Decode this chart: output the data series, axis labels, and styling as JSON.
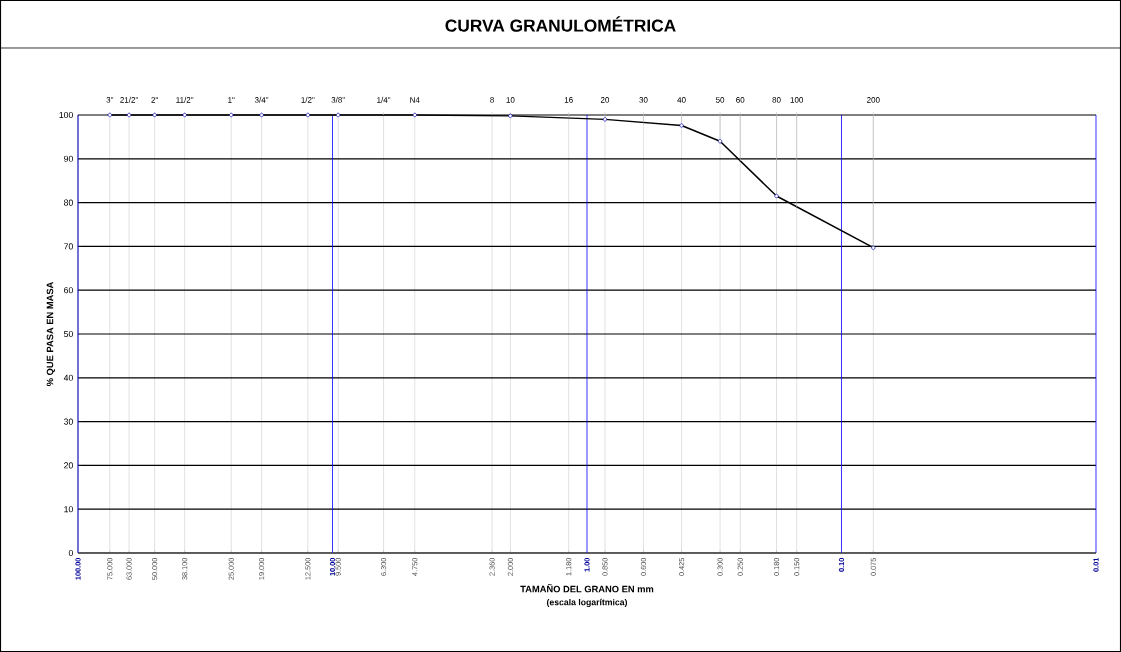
{
  "chart_data": {
    "type": "line",
    "title": "CURVA GRANULOMÉTRICA",
    "xlabel": "TAMAÑO DEL GRANO EN mm",
    "ylabel": "% QUE PASA EN MASA",
    "annotations": [
      "(escala logarítmica)",
      {
        "text": "3\"",
        "x": 75,
        "y": 100
      },
      {
        "text": "21/2\"",
        "x": 63,
        "y": 100
      },
      {
        "text": "2\"",
        "x": 50,
        "y": 100
      },
      {
        "text": "11/2\"",
        "x": 38.1,
        "y": 100
      },
      {
        "text": "1\"",
        "x": 25,
        "y": 100
      },
      {
        "text": "3/4\"",
        "x": 19,
        "y": 100
      },
      {
        "text": "1/2\"",
        "x": 12.5,
        "y": 100
      },
      {
        "text": "3/8\"",
        "x": 9.5,
        "y": 100
      },
      {
        "text": "1/4\"",
        "x": 6.3,
        "y": 100
      },
      {
        "text": "N4",
        "x": 4.75,
        "y": 100
      },
      {
        "text": "8",
        "x": 2.36,
        "y": 100
      },
      {
        "text": "10",
        "x": 2.0,
        "y": 100
      },
      {
        "text": "16",
        "x": 1.18,
        "y": 99.4
      },
      {
        "text": "20",
        "x": 0.85,
        "y": 99.0
      },
      {
        "text": "30",
        "x": 0.6,
        "y": 98.3
      },
      {
        "text": "40",
        "x": 0.425,
        "y": 97.6
      },
      {
        "text": "50",
        "x": 0.3,
        "y": 94.0
      },
      {
        "text": "60",
        "x": 0.25,
        "y": 89.5
      },
      {
        "text": "80",
        "x": 0.18,
        "y": 81.5
      },
      {
        "text": "100",
        "x": 0.15,
        "y": 79.0
      },
      {
        "text": "200",
        "x": 0.075,
        "y": 69.7
      }
    ],
    "x": [
      75,
      63,
      50,
      38.1,
      25,
      19,
      12.5,
      9.5,
      4.75,
      2.0,
      0.85,
      0.425,
      0.3,
      0.18,
      0.075
    ],
    "series": [
      {
        "color": "#000000",
        "values": [
          100,
          100,
          100,
          100,
          100,
          100,
          100,
          100,
          100,
          99.8,
          99.0,
          97.6,
          94.0,
          81.5,
          69.7
        ]
      }
    ],
    "marker": "circle",
    "grid": true,
    "log": "x",
    "xlim": [
      100,
      0.01
    ],
    "ylim": [
      0,
      100
    ],
    "yticks": [
      0,
      10,
      20,
      30,
      40,
      50,
      60,
      70,
      80,
      90,
      100
    ],
    "xticks": [
      {
        "value": 100,
        "label": "100.00"
      },
      {
        "value": 75,
        "label": "75.000"
      },
      {
        "value": 63,
        "label": "63.000"
      },
      {
        "value": 50,
        "label": "50.000"
      },
      {
        "value": 38.1,
        "label": "38.100"
      },
      {
        "value": 25,
        "label": "25.000"
      },
      {
        "value": 19,
        "label": "19.000"
      },
      {
        "value": 12.5,
        "label": "12.500"
      },
      {
        "value": 10,
        "label": "10.00"
      },
      {
        "value": 9.5,
        "label": "9.500"
      },
      {
        "value": 6.3,
        "label": "6.300"
      },
      {
        "value": 4.75,
        "label": "4.750"
      },
      {
        "value": 2.36,
        "label": "2.360"
      },
      {
        "value": 2,
        "label": "2.000"
      },
      {
        "value": 1.18,
        "label": "1.180"
      },
      {
        "value": 1,
        "label": "1.00"
      },
      {
        "value": 0.85,
        "label": "0.850"
      },
      {
        "value": 0.6,
        "label": "0.600"
      },
      {
        "value": 0.425,
        "label": "0.425"
      },
      {
        "value": 0.3,
        "label": "0.300"
      },
      {
        "value": 0.25,
        "label": "0.250"
      },
      {
        "value": 0.18,
        "label": "0.180"
      },
      {
        "value": 0.15,
        "label": "0.150"
      },
      {
        "value": 0.1,
        "label": "0.10"
      },
      {
        "value": 0.075,
        "label": "0.075"
      },
      {
        "value": 0.01,
        "label": "0.01"
      }
    ]
  }
}
